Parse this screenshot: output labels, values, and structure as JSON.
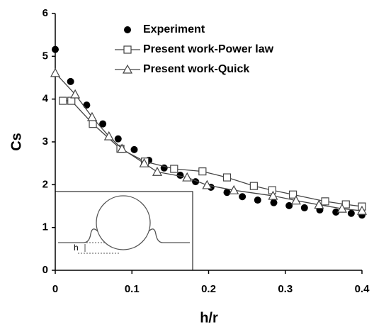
{
  "chart_data": {
    "type": "scatter",
    "x_label": "h/r",
    "y_label": "Cs",
    "xlim": [
      0,
      0.4
    ],
    "xticks": [
      0,
      0.1,
      0.2,
      0.3,
      0.4
    ],
    "ylim": [
      0,
      6
    ],
    "yticks": [
      0,
      1,
      2,
      3,
      4,
      5,
      6
    ],
    "legend_position": "upper-right",
    "inset_label": "h",
    "series": [
      {
        "name": "Experiment",
        "color": "#000000",
        "marker": "circle",
        "mode": "markers",
        "x": [
          0,
          0.02,
          0.041,
          0.062,
          0.082,
          0.103,
          0.122,
          0.142,
          0.163,
          0.183,
          0.203,
          0.224,
          0.244,
          0.264,
          0.285,
          0.305,
          0.325,
          0.345,
          0.366,
          0.386,
          0.4
        ],
        "values": [
          5.16,
          4.41,
          3.86,
          3.42,
          3.07,
          2.82,
          2.57,
          2.39,
          2.22,
          2.07,
          1.94,
          1.82,
          1.72,
          1.64,
          1.58,
          1.51,
          1.46,
          1.41,
          1.36,
          1.33,
          1.29
        ]
      },
      {
        "name": "Present work-Power law",
        "color": "#444444",
        "marker": "square",
        "mode": "lines+markers",
        "x": [
          0.01,
          0.021,
          0.049,
          0.085,
          0.117,
          0.155,
          0.192,
          0.224,
          0.259,
          0.283,
          0.31,
          0.352,
          0.379,
          0.4
        ],
        "values": [
          3.96,
          3.96,
          3.42,
          2.84,
          2.54,
          2.37,
          2.31,
          2.17,
          1.97,
          1.87,
          1.77,
          1.61,
          1.54,
          1.49
        ]
      },
      {
        "name": "Present work-Quick",
        "color": "#444444",
        "marker": "triangle",
        "mode": "lines+markers",
        "x": [
          0,
          0.026,
          0.048,
          0.07,
          0.087,
          0.116,
          0.133,
          0.172,
          0.198,
          0.233,
          0.284,
          0.314,
          0.344,
          0.374,
          0.4
        ],
        "values": [
          4.61,
          4.11,
          3.58,
          3.13,
          2.84,
          2.5,
          2.3,
          2.17,
          1.99,
          1.87,
          1.74,
          1.63,
          1.53,
          1.44,
          1.39
        ]
      }
    ]
  }
}
